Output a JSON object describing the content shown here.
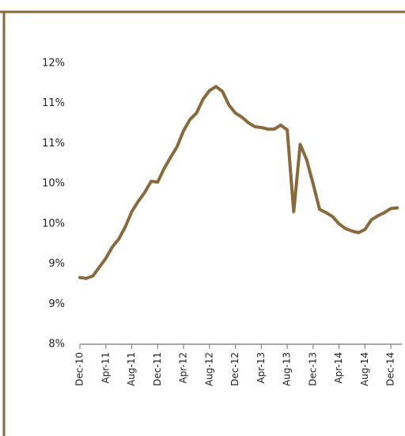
{
  "chart_data": {
    "type": "line",
    "categories": [
      "Dec-10",
      null,
      null,
      null,
      "Apr-11",
      null,
      null,
      null,
      "Aug-11",
      null,
      null,
      null,
      "Dec-11",
      null,
      null,
      null,
      "Apr-12",
      null,
      null,
      null,
      "Aug-12",
      null,
      null,
      null,
      "Dec-12",
      null,
      null,
      null,
      "Apr-13",
      null,
      null,
      null,
      "Aug-13",
      null,
      null,
      null,
      "Dec-13",
      null,
      null,
      null,
      "Apr-14",
      null,
      null,
      null,
      "Aug-14",
      null,
      null,
      null,
      "Dec-14",
      null
    ],
    "values": [
      8.83,
      8.82,
      8.85,
      8.96,
      9.07,
      9.21,
      9.31,
      9.46,
      9.65,
      9.78,
      9.89,
      10.03,
      10.02,
      10.19,
      10.33,
      10.46,
      10.66,
      10.8,
      10.88,
      11.05,
      11.16,
      11.21,
      11.15,
      10.98,
      10.88,
      10.83,
      10.76,
      10.71,
      10.7,
      10.68,
      10.68,
      10.73,
      10.67,
      9.65,
      10.49,
      10.3,
      10.0,
      9.68,
      9.64,
      9.59,
      9.5,
      9.44,
      9.41,
      9.39,
      9.43,
      9.55,
      9.6,
      9.64,
      9.69,
      9.7
    ],
    "color": "#8a6a3c",
    "ylim": [
      8,
      11.5
    ],
    "yticks": [
      {
        "value": 8,
        "label": "8%"
      },
      {
        "value": 8.5,
        "label": "9%"
      },
      {
        "value": 9,
        "label": "9%"
      },
      {
        "value": 9.5,
        "label": "10%"
      },
      {
        "value": 10,
        "label": "10%"
      },
      {
        "value": 10.5,
        "label": "11%"
      },
      {
        "value": 11,
        "label": "11%"
      },
      {
        "value": 11.5,
        "label": "12%"
      }
    ]
  }
}
